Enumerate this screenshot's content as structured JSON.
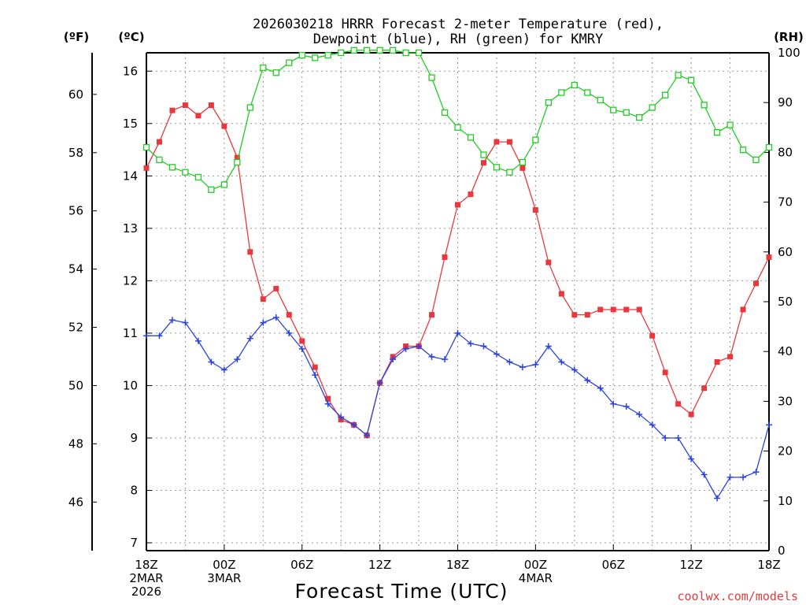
{
  "chart_data": {
    "type": "line",
    "title_line1": "2026030218 HRRR Forecast 2-meter Temperature (red),",
    "title_line2": "Dewpoint (blue), RH (green) for KMRY",
    "xlabel": "Forecast Time (UTC)",
    "credit": "coolwx.com/models",
    "units": {
      "fahrenheit": "(ºF)",
      "celsius": "(ºC)",
      "rh": "(RH)"
    },
    "x_range": [
      0,
      48
    ],
    "celsius_range": [
      6.85,
      16.35
    ],
    "fahrenheit_ticks": [
      "46",
      "48",
      "50",
      "52",
      "54",
      "56",
      "58",
      "60"
    ],
    "celsius_ticks": [
      "7",
      "8",
      "9",
      "10",
      "11",
      "12",
      "13",
      "14",
      "15",
      "16"
    ],
    "rh_range": [
      0,
      100
    ],
    "rh_ticks": [
      "0",
      "10",
      "20",
      "30",
      "40",
      "50",
      "60",
      "70",
      "80",
      "90",
      "100"
    ],
    "x_ticks": [
      {
        "hour": 0,
        "lines": [
          "18Z",
          "2MAR",
          "2026"
        ]
      },
      {
        "hour": 6,
        "lines": [
          "00Z",
          "3MAR"
        ]
      },
      {
        "hour": 12,
        "lines": [
          "06Z"
        ]
      },
      {
        "hour": 18,
        "lines": [
          "12Z"
        ]
      },
      {
        "hour": 24,
        "lines": [
          "18Z"
        ]
      },
      {
        "hour": 30,
        "lines": [
          "00Z",
          "4MAR"
        ]
      },
      {
        "hour": 36,
        "lines": [
          "06Z"
        ]
      },
      {
        "hour": 42,
        "lines": [
          "12Z"
        ]
      },
      {
        "hour": 48,
        "lines": [
          "18Z"
        ]
      }
    ],
    "series": [
      {
        "name": "Temperature",
        "unit": "°C",
        "color": "#e8383d",
        "marker": "filled-square",
        "values": [
          14.15,
          14.65,
          15.25,
          15.35,
          15.15,
          15.35,
          14.95,
          14.35,
          12.55,
          11.65,
          11.85,
          11.35,
          10.85,
          10.35,
          9.75,
          9.35,
          9.25,
          9.05,
          10.05,
          10.55,
          10.75,
          10.75,
          11.35,
          12.45,
          13.45,
          13.65,
          14.25,
          14.65,
          14.65,
          14.15,
          13.35,
          12.35,
          11.75,
          11.35,
          11.35,
          11.45,
          11.45,
          11.45,
          11.45,
          10.95,
          10.25,
          9.65,
          9.45,
          9.95,
          10.45,
          10.55,
          11.45,
          11.95,
          12.45
        ]
      },
      {
        "name": "Dewpoint",
        "unit": "°C",
        "color": "#2a43e0",
        "marker": "plus",
        "values": [
          10.95,
          10.95,
          11.25,
          11.2,
          10.85,
          10.45,
          10.3,
          10.5,
          10.9,
          11.2,
          11.3,
          11.0,
          10.7,
          10.2,
          9.65,
          9.4,
          9.25,
          9.05,
          10.05,
          10.5,
          10.7,
          10.75,
          10.55,
          10.5,
          11.0,
          10.8,
          10.75,
          10.6,
          10.45,
          10.35,
          10.4,
          10.75,
          10.45,
          10.3,
          10.1,
          9.95,
          9.65,
          9.6,
          9.45,
          9.25,
          9.0,
          9.0,
          8.6,
          8.3,
          7.85,
          8.25,
          8.25,
          8.35,
          9.25
        ]
      },
      {
        "name": "RH",
        "unit": "%",
        "color": "#22cc22",
        "marker": "open-square",
        "axis": "right",
        "values": [
          81,
          78.5,
          77,
          76,
          75,
          72.5,
          73.5,
          78,
          89,
          97,
          96,
          98,
          99.5,
          99,
          99.5,
          100,
          100.5,
          100.5,
          100.5,
          100.5,
          100,
          100,
          95,
          88,
          85,
          83,
          79.5,
          77,
          76,
          78,
          82.5,
          90,
          92,
          93.5,
          92,
          90.5,
          88.5,
          88,
          87,
          89,
          91.5,
          95.5,
          94.5,
          89.5,
          84,
          85.5,
          80.5,
          78.5,
          81
        ]
      }
    ]
  }
}
